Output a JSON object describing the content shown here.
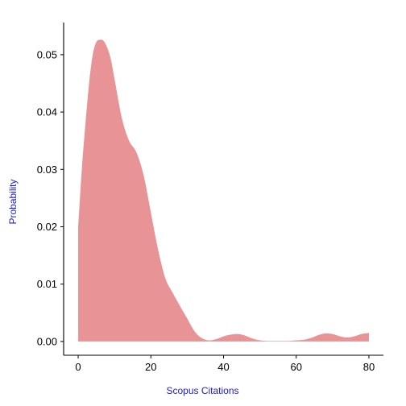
{
  "chart_data": {
    "type": "area",
    "xlabel": "Scopus Citations",
    "ylabel": "Probability",
    "xlim": [
      -4,
      84
    ],
    "ylim": [
      -0.0024,
      0.0556
    ],
    "x_ticks": [
      0,
      20,
      40,
      60,
      80
    ],
    "y_ticks": [
      0.0,
      0.01,
      0.02,
      0.03,
      0.04,
      0.05
    ],
    "x_tick_labels": [
      "0",
      "20",
      "40",
      "60",
      "80"
    ],
    "y_tick_labels": [
      "0.00",
      "0.01",
      "0.02",
      "0.03",
      "0.04",
      "0.05"
    ],
    "grid": false,
    "legend": "none",
    "series": [
      {
        "x": [
          0,
          1,
          2,
          3,
          4,
          5,
          6,
          7,
          8,
          9,
          10,
          12,
          14,
          16,
          18,
          20,
          22,
          24,
          26,
          28,
          30,
          32,
          34,
          36,
          38,
          40,
          42,
          44,
          46,
          48,
          50,
          52,
          54,
          56,
          58,
          60,
          62,
          64,
          66,
          68,
          70,
          72,
          74,
          76,
          78,
          80
        ],
        "y": [
          0.02,
          0.03,
          0.038,
          0.045,
          0.05,
          0.0522,
          0.0526,
          0.0524,
          0.0512,
          0.0492,
          0.0458,
          0.039,
          0.035,
          0.033,
          0.029,
          0.0225,
          0.016,
          0.011,
          0.0085,
          0.0062,
          0.004,
          0.0018,
          0.0006,
          0.0002,
          0.0004,
          0.0009,
          0.0012,
          0.0013,
          0.001,
          0.0005,
          0.0002,
          0.0001,
          0.0001,
          0.0001,
          0.0001,
          0.0002,
          0.0003,
          0.0006,
          0.0011,
          0.0014,
          0.0013,
          0.0009,
          0.0007,
          0.0009,
          0.0013,
          0.0015
        ]
      }
    ]
  },
  "colors": {
    "fill": "#e89496",
    "axis": "#000000",
    "axis_title": "#1a1adb"
  }
}
